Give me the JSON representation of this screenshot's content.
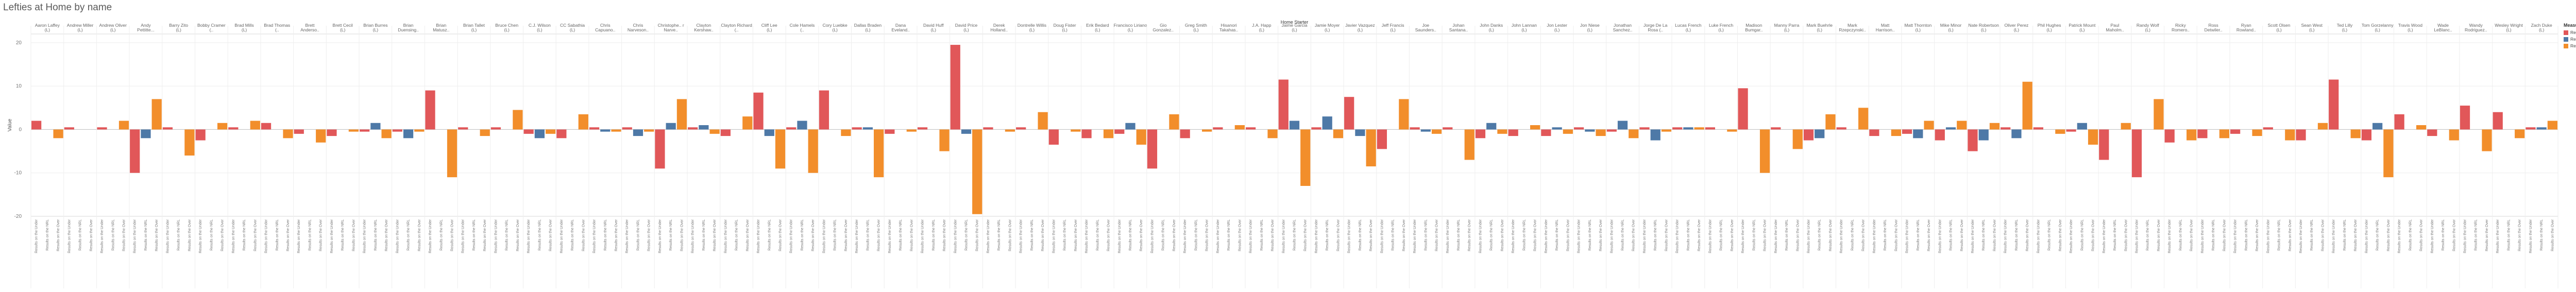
{
  "chart_title": "Lefties at Home by name",
  "legend": {
    "title": "Measure Names",
    "items": [
      {
        "label": "Results on the Under",
        "color": "#e15759"
      },
      {
        "label": "Results on the NRL",
        "color": "#4e79a7"
      },
      {
        "label": "Results on the Over",
        "color": "#f28e2b"
      }
    ]
  },
  "chart_data": {
    "type": "bar",
    "title": "Lefties at Home by name",
    "column_header": "Home Starter",
    "ylabel": "Value",
    "ylim": [
      -20,
      22
    ],
    "yticks": [
      20,
      10,
      0,
      -10,
      -20
    ],
    "xtick_label": "Results on the Under Results on the NRL Results on the Over",
    "grid": true,
    "legend_position": "right",
    "series_names": [
      "Results on the Under",
      "Results on the NRL",
      "Results on the Over"
    ],
    "categories": [
      "Aaron Laffey (L)",
      "Andrew Miller (L)",
      "Andrew Oliver (L)",
      "Andy Pettitte...",
      "Barry Zito (L)",
      "Bobby Cramer (..",
      "Brad Mills (L)",
      "Brad Thomas (..",
      "Brett Anderso..",
      "Brett Cecil (L)",
      "Brian Burres (L)",
      "Brian Duensing..",
      "Brian Matusz..",
      "Brian Tallet (L)",
      "Bruce Chen (L)",
      "C.J. Wilson (L)",
      "CC Sabathia (L)",
      "Chris Capuano..",
      "Chris Narveson..",
      "Christophe.. r Narve..",
      "Clayton Kershaw..",
      "Clayton Richard (..",
      "Cliff Lee (L)",
      "Cole Hamels (..",
      "Cory Luebke (L)",
      "Dallas Braden (L)",
      "Dana Eveland..",
      "David Huff (L)",
      "David Price (L)",
      "Derek Holland..",
      "Dontrelle Willis (L)",
      "Doug Fister (L)",
      "Erik Bedard (L)",
      "Francisco Liriano (L)",
      "Gio Gonzalez..",
      "Greg Smith (L)",
      "Hisanori Takahas..",
      "J.A. Happ (L)",
      "Jaime Garcia (L)",
      "Jamie Moyer (L)",
      "Javier Vazquez (L)",
      "Jeff Francis (L)",
      "Joe Saunders..",
      "Johan Santana..",
      "John Danks (L)",
      "John Lannan (L)",
      "Jon Lester (L)",
      "Jon Niese (L)",
      "Jonathan Sanchez..",
      "Jorge De La Rosa (..",
      "Lucas French (L)",
      "Luke French (L)",
      "Madison Bumgar..",
      "Manny Parra (L)",
      "Mark Buehrle (L)",
      "Mark Rzepczynski..",
      "Matt Harrison..",
      "Matt Thornton (L)",
      "Mike Minor (L)",
      "Nate Robertson (L)",
      "Oliver Perez (L)",
      "Phil Hughes (L)",
      "Patrick Mount (L)",
      "Paul Maholm..",
      "Randy Wolf (L)",
      "Ricky Romero..",
      "Ross Detwiler..",
      "Ryan Rowland..",
      "Scott Olsen (L)",
      "Sean West (L)",
      "Ted Lilly (L)",
      "Tom Gorzelanny (L)",
      "Travis Wood (L)",
      "Wade LeBlanc..",
      "Wandy Rodriguez..",
      "Wesley Wright (L)",
      "Zach Duke (L)"
    ],
    "series": [
      {
        "name": "Results on the Under",
        "values": [
          2,
          0.5,
          0.5,
          -10,
          0.5,
          -2.5,
          0.5,
          1.5,
          -1,
          -1.5,
          -0.5,
          -0.5,
          9,
          0.5,
          0.5,
          -1,
          -2,
          0.5,
          0.5,
          -9,
          0.5,
          -1.5,
          8.5,
          0.5,
          9,
          0.5,
          -1,
          0.5,
          19.5,
          0.5,
          0.5,
          -3.5,
          -2,
          -1,
          -9,
          -2,
          0.5,
          0.5,
          11.5,
          0.5,
          7.5,
          -4.5,
          0.5,
          0.5,
          -2,
          -1.5,
          -1.5,
          0.5,
          -0.5,
          0.5,
          0.5,
          0.5,
          9.5,
          0.5,
          -2.5,
          0.5,
          -1.5,
          -1,
          -2.5,
          -5,
          0.5,
          0.5,
          -0.5,
          -7,
          -11,
          -3,
          -2,
          -1,
          0.5,
          -2.5,
          11.5,
          -2.5,
          3.5,
          -1.5,
          5.5,
          4,
          0.5
        ]
      },
      {
        "name": "Results on the NRL",
        "values": [
          0,
          0,
          0,
          -2,
          0,
          0,
          0,
          0,
          0,
          0,
          1.5,
          -2,
          0,
          0,
          0,
          -2,
          0,
          -0.5,
          -1.5,
          1.5,
          1,
          0,
          -1.5,
          2,
          0,
          0.5,
          0,
          0,
          -1,
          0,
          0,
          0,
          0,
          1.5,
          0,
          0,
          0,
          0,
          2,
          3,
          -1.5,
          0,
          -0.5,
          0,
          1.5,
          0,
          0.5,
          -0.5,
          2,
          -2.5,
          0.5,
          0,
          0,
          0,
          -2,
          0,
          0,
          -2,
          0.5,
          -2.5,
          -2,
          0,
          1.5,
          0,
          0,
          0,
          0,
          0,
          0,
          0,
          0,
          1.5,
          0,
          0,
          0,
          0,
          0.5
        ]
      },
      {
        "name": "Results on the Over",
        "values": [
          -2,
          0,
          2,
          7,
          -6,
          1.5,
          2,
          -2,
          -3,
          -0.5,
          -2,
          -0.5,
          -11,
          -1.5,
          4.5,
          -1,
          3.5,
          -0.5,
          -0.5,
          7,
          -1,
          3,
          -9,
          -10,
          -1.5,
          -11,
          -0.5,
          -5,
          -19.5,
          -0.5,
          4,
          -0.5,
          -2,
          -3.5,
          3.5,
          -0.5,
          1,
          -2,
          -13,
          -2,
          -8.5,
          7,
          -1,
          -7,
          -1,
          1,
          -1,
          -1.5,
          -2,
          -0.5,
          0.5,
          -0.5,
          -10,
          -4.5,
          3.5,
          5,
          -1.5,
          2,
          2,
          1.5,
          11,
          -1,
          -3.5,
          1.5,
          7,
          -2.5,
          -2,
          -1.5,
          -2.5,
          1.5,
          -2,
          -11,
          1,
          -2.5,
          -5,
          -2,
          2
        ]
      }
    ]
  }
}
